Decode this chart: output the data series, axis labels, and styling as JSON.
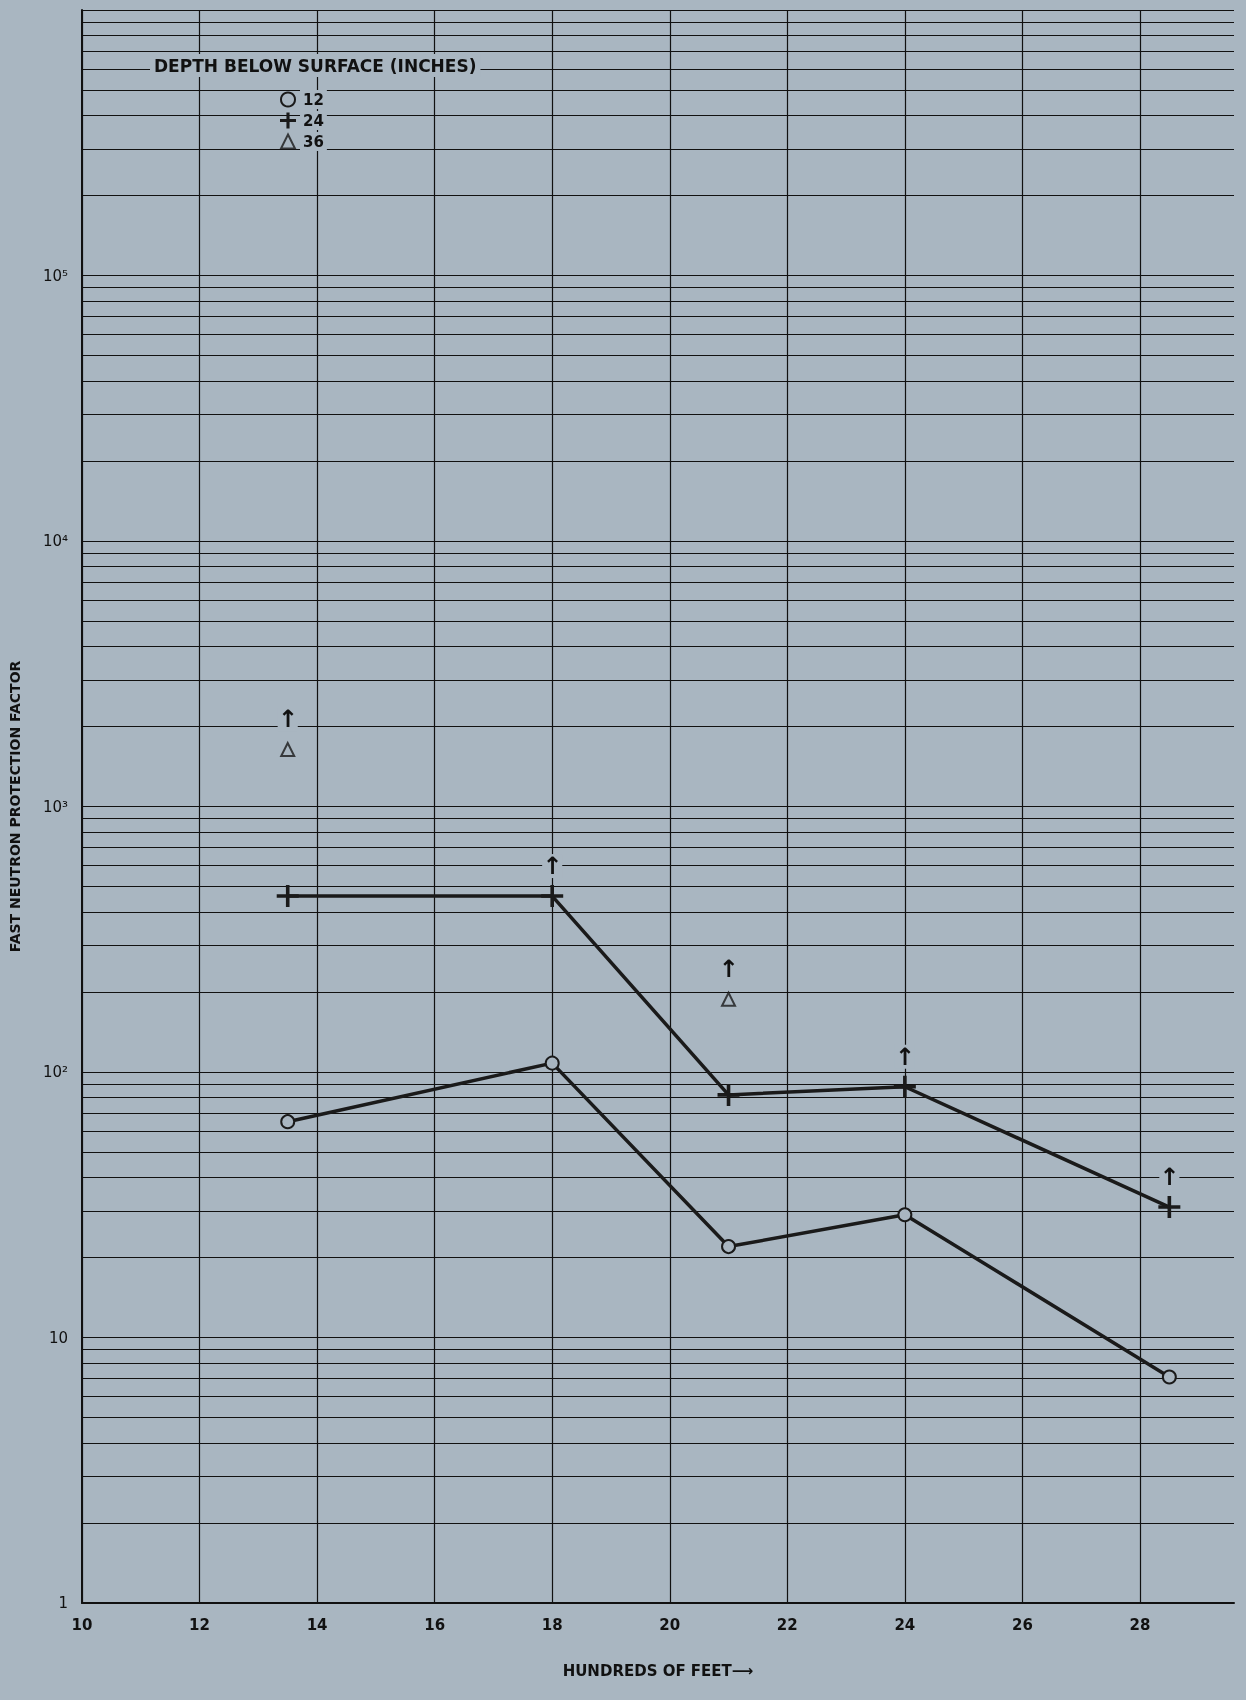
{
  "chart_data": {
    "type": "line",
    "xlabel": "HUNDREDS OF FEET⟶",
    "ylabel": "FAST NEUTRON PROTECTION FACTOR",
    "legend_title": "DEPTH BELOW SURFACE (INCHES)",
    "legend": "top left",
    "log": "y",
    "grid": true,
    "xlim": [
      10,
      29.6
    ],
    "xticks": [
      10,
      12,
      14,
      16,
      18,
      20,
      22,
      24,
      26,
      28
    ],
    "ylim": [
      1,
      1000000
    ],
    "yticks": [
      1,
      10,
      {
        "value": 100,
        "label": "10²"
      },
      {
        "value": 1000,
        "label": "10³"
      },
      {
        "value": 10000,
        "label": "10⁴"
      },
      {
        "value": 100000,
        "label": "10⁵"
      },
      {
        "value": 1000000,
        "label": null
      }
    ],
    "series": [
      {
        "name": "12",
        "marker": "circle",
        "color": "#1a1a1a",
        "x": [
          13.5,
          18,
          21,
          24,
          28.5
        ],
        "values": [
          65,
          108,
          22,
          29,
          7.1
        ]
      },
      {
        "name": "24",
        "marker": "cross",
        "color": "#1a1a1a",
        "x": [
          13.5,
          18,
          21,
          24,
          28.5
        ],
        "values": [
          460,
          460,
          82,
          88,
          31
        ]
      },
      {
        "name": "36",
        "type": "scatter",
        "marker": "triangle",
        "color": "#1a1a1a",
        "x": [
          13.5,
          21
        ],
        "values": [
          1640,
          188
        ]
      }
    ],
    "annotations": [
      {
        "text": "↑",
        "x": 13.5,
        "y": 1640
      },
      {
        "text": "↑",
        "x": 18,
        "y": 460
      },
      {
        "text": "↑",
        "x": 21,
        "y": 188
      },
      {
        "text": "↑",
        "x": 24,
        "y": 88
      },
      {
        "text": "↑",
        "x": 28.5,
        "y": 31
      }
    ]
  }
}
